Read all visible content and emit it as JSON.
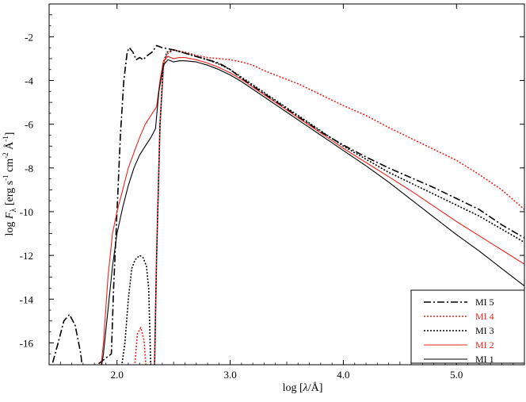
{
  "chart_data": {
    "type": "line",
    "title": "",
    "xlabel_parts": {
      "prefix": "log [",
      "lambda": "λ",
      "slash": "/",
      "unit": "Å",
      "suffix": "]"
    },
    "ylabel_parts": {
      "prefix": "log ",
      "F": "F",
      "sub": "λ",
      "open": " [erg s",
      "e1": "-1",
      "mid": " cm",
      "e2": "-2",
      "ang": " Å",
      "e3": "-1",
      "close": "]"
    },
    "xlim": [
      1.4,
      5.6
    ],
    "ylim": [
      -17,
      -0.5
    ],
    "x_ticks": [
      {
        "value": 2.0,
        "label": "2.0"
      },
      {
        "value": 3.0,
        "label": "3.0"
      },
      {
        "value": 4.0,
        "label": "4.0"
      },
      {
        "value": 5.0,
        "label": "5.0"
      }
    ],
    "y_ticks": [
      {
        "value": -2,
        "label": "-2"
      },
      {
        "value": -4,
        "label": "-4"
      },
      {
        "value": -6,
        "label": "-6"
      },
      {
        "value": -8,
        "label": "-8"
      },
      {
        "value": -10,
        "label": "-10"
      },
      {
        "value": -12,
        "label": "-12"
      },
      {
        "value": -14,
        "label": "-14"
      },
      {
        "value": -16,
        "label": "-16"
      }
    ],
    "grid": false,
    "legend_position": "bottom-right",
    "series": [
      {
        "name": "MI 5",
        "color": "#000000",
        "dash": "dashdot",
        "points": [
          [
            1.4,
            -17.5
          ],
          [
            1.48,
            -16.0
          ],
          [
            1.53,
            -15.0
          ],
          [
            1.58,
            -14.7
          ],
          [
            1.63,
            -15.2
          ],
          [
            1.68,
            -16.5
          ],
          [
            1.7,
            -17.5
          ],
          [
            1.95,
            -16.5
          ],
          [
            1.97,
            -13.5
          ],
          [
            2.0,
            -10.0
          ],
          [
            2.03,
            -6.5
          ],
          [
            2.06,
            -4.0
          ],
          [
            2.09,
            -2.7
          ],
          [
            2.11,
            -2.5
          ],
          [
            2.14,
            -2.7
          ],
          [
            2.17,
            -3.05
          ],
          [
            2.2,
            -2.95
          ],
          [
            2.23,
            -3.05
          ],
          [
            2.27,
            -2.85
          ],
          [
            2.31,
            -2.7
          ],
          [
            2.35,
            -2.4
          ],
          [
            2.4,
            -2.5
          ],
          [
            2.5,
            -2.6
          ],
          [
            2.6,
            -2.75
          ],
          [
            2.7,
            -2.9
          ],
          [
            2.8,
            -3.05
          ],
          [
            2.9,
            -3.2
          ],
          [
            3.0,
            -3.5
          ],
          [
            3.1,
            -3.9
          ],
          [
            3.2,
            -4.25
          ],
          [
            3.3,
            -4.6
          ],
          [
            3.4,
            -4.95
          ],
          [
            3.5,
            -5.3
          ],
          [
            3.6,
            -5.65
          ],
          [
            3.7,
            -6.0
          ],
          [
            3.8,
            -6.35
          ],
          [
            3.9,
            -6.65
          ],
          [
            4.0,
            -6.95
          ],
          [
            4.2,
            -7.5
          ],
          [
            4.4,
            -8.0
          ],
          [
            4.6,
            -8.45
          ],
          [
            4.8,
            -8.9
          ],
          [
            5.0,
            -9.4
          ],
          [
            5.2,
            -9.9
          ],
          [
            5.4,
            -10.6
          ],
          [
            5.6,
            -11.2
          ]
        ]
      },
      {
        "name": "MI 4",
        "color": "#e8231c",
        "dash": "dotted",
        "points": [
          [
            2.15,
            -17.5
          ],
          [
            2.18,
            -15.6
          ],
          [
            2.21,
            -15.3
          ],
          [
            2.24,
            -15.9
          ],
          [
            2.26,
            -17.5
          ],
          [
            2.33,
            -17.5
          ],
          [
            2.35,
            -12.0
          ],
          [
            2.38,
            -6.0
          ],
          [
            2.41,
            -3.4
          ],
          [
            2.44,
            -2.8
          ],
          [
            2.5,
            -2.6
          ],
          [
            2.6,
            -2.7
          ],
          [
            2.7,
            -2.85
          ],
          [
            2.8,
            -2.95
          ],
          [
            2.9,
            -3.0
          ],
          [
            3.0,
            -3.05
          ],
          [
            3.1,
            -3.15
          ],
          [
            3.2,
            -3.3
          ],
          [
            3.3,
            -3.55
          ],
          [
            3.4,
            -3.75
          ],
          [
            3.5,
            -3.95
          ],
          [
            3.6,
            -4.15
          ],
          [
            3.7,
            -4.4
          ],
          [
            3.8,
            -4.65
          ],
          [
            3.9,
            -4.9
          ],
          [
            4.0,
            -5.15
          ],
          [
            4.2,
            -5.6
          ],
          [
            4.4,
            -6.15
          ],
          [
            4.6,
            -6.65
          ],
          [
            4.8,
            -7.15
          ],
          [
            5.0,
            -7.65
          ],
          [
            5.2,
            -8.3
          ],
          [
            5.4,
            -9.0
          ],
          [
            5.6,
            -9.9
          ]
        ]
      },
      {
        "name": "MI 3",
        "color": "#000000",
        "dash": "dotted",
        "points": [
          [
            2.03,
            -17.5
          ],
          [
            2.07,
            -16.0
          ],
          [
            2.1,
            -14.0
          ],
          [
            2.13,
            -12.6
          ],
          [
            2.16,
            -12.2
          ],
          [
            2.2,
            -12.0
          ],
          [
            2.23,
            -12.1
          ],
          [
            2.26,
            -12.5
          ],
          [
            2.28,
            -13.5
          ],
          [
            2.3,
            -17.5
          ],
          [
            2.33,
            -17.5
          ],
          [
            2.35,
            -12.0
          ],
          [
            2.38,
            -6.0
          ],
          [
            2.41,
            -3.2
          ],
          [
            2.44,
            -2.7
          ],
          [
            2.5,
            -2.6
          ],
          [
            2.6,
            -2.75
          ],
          [
            2.7,
            -2.9
          ],
          [
            2.8,
            -3.05
          ],
          [
            2.9,
            -3.25
          ],
          [
            3.0,
            -3.5
          ],
          [
            3.1,
            -3.85
          ],
          [
            3.2,
            -4.2
          ],
          [
            3.3,
            -4.55
          ],
          [
            3.4,
            -4.9
          ],
          [
            3.5,
            -5.25
          ],
          [
            3.6,
            -5.6
          ],
          [
            3.7,
            -5.95
          ],
          [
            3.8,
            -6.3
          ],
          [
            3.9,
            -6.65
          ],
          [
            4.0,
            -7.0
          ],
          [
            4.2,
            -7.6
          ],
          [
            4.4,
            -8.2
          ],
          [
            4.6,
            -8.7
          ],
          [
            4.8,
            -9.2
          ],
          [
            5.0,
            -9.7
          ],
          [
            5.2,
            -10.2
          ],
          [
            5.4,
            -10.8
          ],
          [
            5.6,
            -11.4
          ]
        ]
      },
      {
        "name": "MI 2",
        "color": "#e8231c",
        "dash": "solid",
        "points": [
          [
            1.85,
            -17.5
          ],
          [
            1.88,
            -16.0
          ],
          [
            1.92,
            -13.0
          ],
          [
            1.96,
            -11.0
          ],
          [
            2.0,
            -10.0
          ],
          [
            2.05,
            -9.0
          ],
          [
            2.1,
            -8.0
          ],
          [
            2.15,
            -7.3
          ],
          [
            2.2,
            -6.6
          ],
          [
            2.25,
            -6.0
          ],
          [
            2.3,
            -5.6
          ],
          [
            2.35,
            -5.2
          ],
          [
            2.38,
            -4.0
          ],
          [
            2.41,
            -3.1
          ],
          [
            2.45,
            -2.9
          ],
          [
            2.5,
            -3.0
          ],
          [
            2.55,
            -2.95
          ],
          [
            2.6,
            -2.95
          ],
          [
            2.7,
            -3.05
          ],
          [
            2.8,
            -3.2
          ],
          [
            2.9,
            -3.4
          ],
          [
            3.0,
            -3.65
          ],
          [
            3.1,
            -3.95
          ],
          [
            3.2,
            -4.3
          ],
          [
            3.3,
            -4.65
          ],
          [
            3.4,
            -5.0
          ],
          [
            3.5,
            -5.35
          ],
          [
            3.6,
            -5.7
          ],
          [
            3.7,
            -6.05
          ],
          [
            3.8,
            -6.4
          ],
          [
            3.9,
            -6.75
          ],
          [
            4.0,
            -7.1
          ],
          [
            4.2,
            -7.75
          ],
          [
            4.4,
            -8.4
          ],
          [
            4.6,
            -9.05
          ],
          [
            4.8,
            -9.75
          ],
          [
            5.0,
            -10.45
          ],
          [
            5.2,
            -11.1
          ],
          [
            5.4,
            -11.75
          ],
          [
            5.6,
            -12.4
          ]
        ]
      },
      {
        "name": "MI 1",
        "color": "#000000",
        "dash": "solid",
        "points": [
          [
            1.85,
            -17.5
          ],
          [
            1.88,
            -16.5
          ],
          [
            1.92,
            -14.5
          ],
          [
            1.96,
            -12.5
          ],
          [
            2.0,
            -11.0
          ],
          [
            2.05,
            -9.8
          ],
          [
            2.1,
            -8.8
          ],
          [
            2.15,
            -8.0
          ],
          [
            2.2,
            -7.4
          ],
          [
            2.25,
            -7.0
          ],
          [
            2.3,
            -6.6
          ],
          [
            2.34,
            -6.2
          ],
          [
            2.37,
            -4.5
          ],
          [
            2.41,
            -3.3
          ],
          [
            2.45,
            -3.05
          ],
          [
            2.5,
            -3.15
          ],
          [
            2.55,
            -3.1
          ],
          [
            2.6,
            -3.1
          ],
          [
            2.7,
            -3.15
          ],
          [
            2.8,
            -3.3
          ],
          [
            2.9,
            -3.5
          ],
          [
            3.0,
            -3.75
          ],
          [
            3.1,
            -4.05
          ],
          [
            3.2,
            -4.4
          ],
          [
            3.3,
            -4.75
          ],
          [
            3.4,
            -5.1
          ],
          [
            3.5,
            -5.45
          ],
          [
            3.6,
            -5.8
          ],
          [
            3.7,
            -6.15
          ],
          [
            3.8,
            -6.5
          ],
          [
            3.9,
            -6.85
          ],
          [
            4.0,
            -7.2
          ],
          [
            4.2,
            -7.9
          ],
          [
            4.4,
            -8.65
          ],
          [
            4.6,
            -9.45
          ],
          [
            4.8,
            -10.25
          ],
          [
            5.0,
            -11.05
          ],
          [
            5.2,
            -11.8
          ],
          [
            5.4,
            -12.6
          ],
          [
            5.6,
            -13.4
          ]
        ]
      }
    ]
  }
}
